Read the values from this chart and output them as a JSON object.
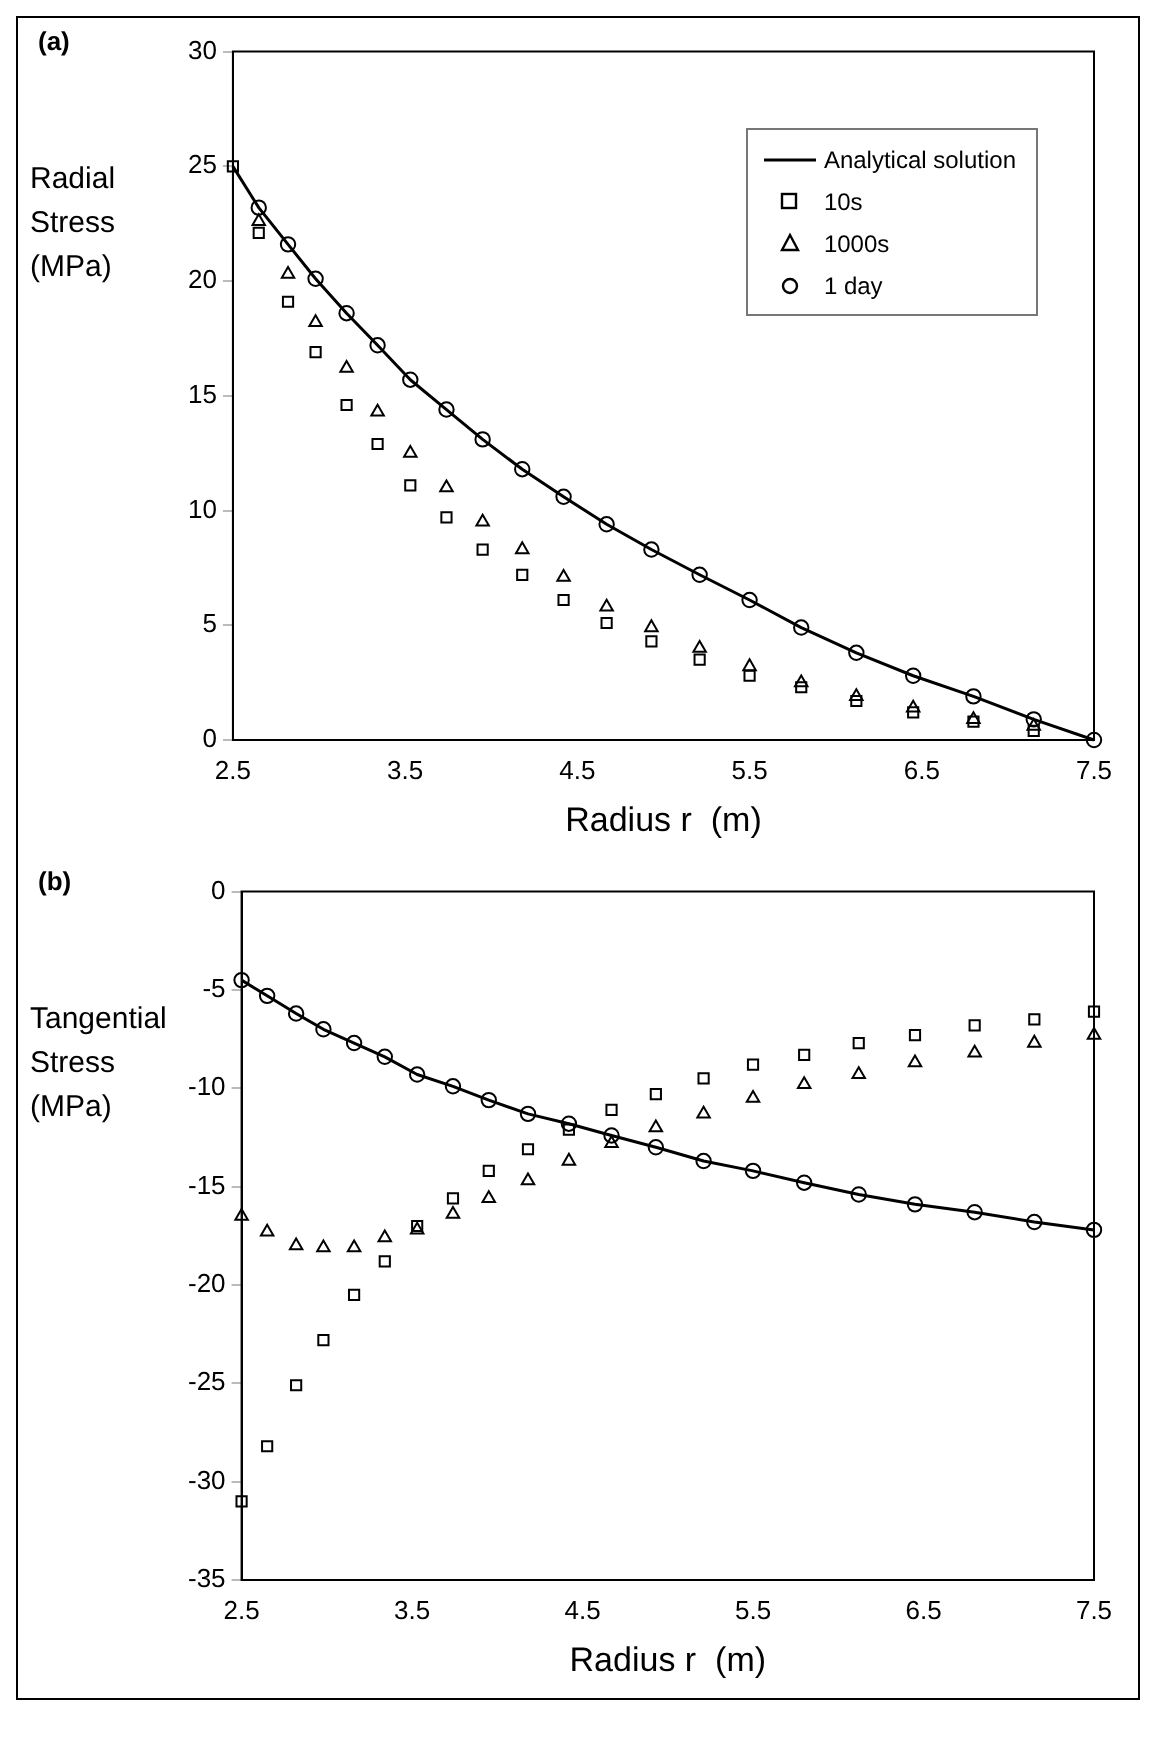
{
  "chart_data": [
    {
      "type": "scatter",
      "title": "(a)",
      "xlabel": "Radius r  (m)",
      "ylabel": "Radial Stress (MPa)",
      "xlim": [
        2.5,
        7.5
      ],
      "xticks": [
        2.5,
        3.5,
        4.5,
        5.5,
        6.5,
        7.5
      ],
      "ylim": [
        0,
        30
      ],
      "yticks": [
        0,
        5,
        10,
        15,
        20,
        25,
        30
      ],
      "grid": false,
      "legend": "top right",
      "x": [
        2.5,
        2.65,
        2.82,
        2.98,
        3.16,
        3.34,
        3.53,
        3.74,
        3.95,
        4.18,
        4.42,
        4.67,
        4.93,
        5.21,
        5.5,
        5.8,
        6.12,
        6.45,
        6.8,
        7.15,
        7.5
      ],
      "series": [
        {
          "name": "Analytical solution",
          "type": "line",
          "marker": "none",
          "line_style": "solid",
          "color": "#000000",
          "values": [
            25,
            23.2,
            21.6,
            20.1,
            18.6,
            17.2,
            15.7,
            14.4,
            13.1,
            11.8,
            10.6,
            9.4,
            8.3,
            7.2,
            6.1,
            4.9,
            3.8,
            2.8,
            1.9,
            0.9,
            0
          ]
        },
        {
          "name": "10s",
          "type": "scatter",
          "marker": "square",
          "color": "#000000",
          "values": [
            25,
            22.1,
            19.1,
            16.9,
            14.6,
            12.9,
            11.1,
            9.7,
            8.3,
            7.2,
            6.1,
            5.1,
            4.3,
            3.5,
            2.8,
            2.3,
            1.7,
            1.2,
            0.8,
            0.4,
            null
          ]
        },
        {
          "name": "1000s",
          "type": "scatter",
          "marker": "triangle",
          "color": "#000000",
          "values": [
            null,
            22.6,
            20.3,
            18.2,
            16.2,
            14.3,
            12.5,
            11,
            9.5,
            8.3,
            7.1,
            5.8,
            4.9,
            4,
            3.2,
            2.5,
            1.9,
            1.4,
            0.9,
            0.6,
            null
          ]
        },
        {
          "name": "1 day",
          "type": "scatter",
          "marker": "circle",
          "color": "#000000",
          "values": [
            null,
            23.2,
            21.6,
            20.1,
            18.6,
            17.2,
            15.7,
            14.4,
            13.1,
            11.8,
            10.6,
            9.4,
            8.3,
            7.2,
            6.1,
            4.9,
            3.8,
            2.8,
            1.9,
            0.9,
            0
          ]
        }
      ]
    },
    {
      "type": "scatter",
      "title": "(b)",
      "xlabel": "Radius r  (m)",
      "ylabel": "Tangential Stress (MPa)",
      "xlim": [
        2.5,
        7.5
      ],
      "xticks": [
        2.5,
        3.5,
        4.5,
        5.5,
        6.5,
        7.5
      ],
      "ylim": [
        -35,
        0
      ],
      "yticks": [
        -35,
        -30,
        -25,
        -20,
        -15,
        -10,
        -5,
        0
      ],
      "grid": false,
      "x": [
        2.5,
        2.65,
        2.82,
        2.98,
        3.16,
        3.34,
        3.53,
        3.74,
        3.95,
        4.18,
        4.42,
        4.67,
        4.93,
        5.21,
        5.5,
        5.8,
        6.12,
        6.45,
        6.8,
        7.15,
        7.5
      ],
      "series": [
        {
          "type": "line",
          "marker": "none",
          "line_style": "solid",
          "color": "#000000",
          "values": [
            -4.5,
            -5.3,
            -6.2,
            -7,
            -7.7,
            -8.4,
            -9.3,
            -9.9,
            -10.6,
            -11.3,
            -11.8,
            -12.4,
            -13,
            -13.7,
            -14.2,
            -14.8,
            -15.4,
            -15.9,
            -16.3,
            -16.8,
            -17.2
          ]
        },
        {
          "type": "scatter",
          "marker": "square",
          "color": "#000000",
          "values": [
            -31,
            -28.2,
            -25.1,
            -22.8,
            -20.5,
            -18.8,
            -17,
            -15.6,
            -14.2,
            -13.1,
            -12.1,
            -11.1,
            -10.3,
            -9.5,
            -8.8,
            -8.3,
            -7.7,
            -7.3,
            -6.8,
            -6.5,
            -6.1
          ]
        },
        {
          "type": "scatter",
          "marker": "triangle",
          "color": "#000000",
          "values": [
            -16.5,
            -17.3,
            -18,
            -18.1,
            -18.1,
            -17.6,
            -17.2,
            -16.4,
            -15.6,
            -14.7,
            -13.7,
            -12.8,
            -12,
            -11.3,
            -10.5,
            -9.8,
            -9.3,
            -8.7,
            -8.2,
            -7.7,
            -7.3
          ]
        },
        {
          "type": "scatter",
          "marker": "circle",
          "color": "#000000",
          "values": [
            -4.5,
            -5.3,
            -6.2,
            -7,
            -7.7,
            -8.4,
            -9.3,
            -9.9,
            -10.6,
            -11.3,
            -11.8,
            -12.4,
            -13,
            -13.7,
            -14.2,
            -14.8,
            -15.4,
            -15.9,
            -16.3,
            -16.8,
            -17.2
          ]
        }
      ]
    }
  ]
}
